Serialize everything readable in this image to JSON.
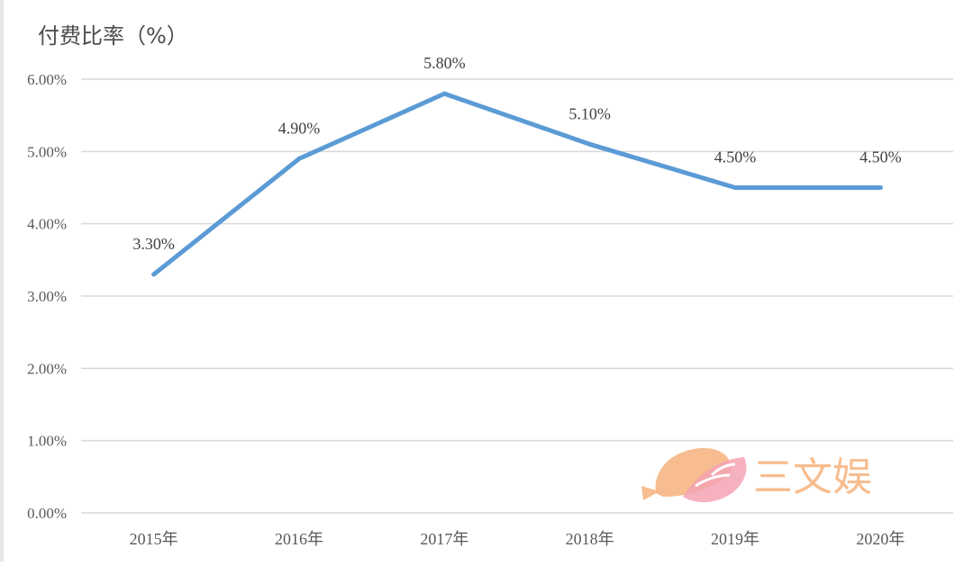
{
  "chart_data": {
    "type": "line",
    "title": "付费比率（%）",
    "categories": [
      "2015年",
      "2016年",
      "2017年",
      "2018年",
      "2019年",
      "2020年"
    ],
    "series": [
      {
        "name": "付费比率",
        "values": [
          3.3,
          4.9,
          5.8,
          5.1,
          4.5,
          4.5
        ],
        "labels": [
          "3.30%",
          "4.90%",
          "5.80%",
          "5.10%",
          "4.50%",
          "4.50%"
        ]
      }
    ],
    "ylim": [
      0,
      6
    ],
    "yticks": [
      "0.00%",
      "1.00%",
      "2.00%",
      "3.00%",
      "4.00%",
      "5.00%",
      "6.00%"
    ],
    "grid": true,
    "xlabel": "",
    "ylabel": ""
  },
  "colors": {
    "line": "#5b9bd5",
    "grid": "#d9d9d9",
    "watermark_orange": "#f6b27c",
    "watermark_pink": "#f4a3b4"
  },
  "watermark": {
    "text": "三文娱"
  }
}
